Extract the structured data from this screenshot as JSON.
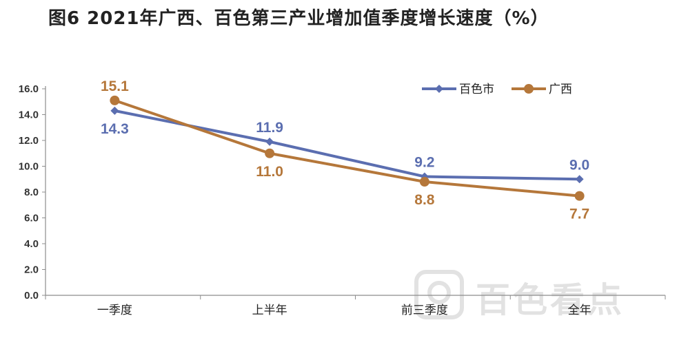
{
  "title": "图6   2021年广西、百色第三产业增加值季度增长速度（%）",
  "watermark": {
    "text": "百色看点",
    "color": "#e2e2e2"
  },
  "chart_data": {
    "type": "line",
    "categories": [
      "一季度",
      "上半年",
      "前三季度",
      "全年"
    ],
    "ylim": [
      0,
      16
    ],
    "yticks": [
      "0.0",
      "2.0",
      "4.0",
      "6.0",
      "8.0",
      "10.0",
      "12.0",
      "14.0",
      "16.0"
    ],
    "grid": false,
    "legend_position": "top-right",
    "series": [
      {
        "name": "百色市",
        "values": [
          14.3,
          11.9,
          9.2,
          9.0
        ],
        "labels": [
          "14.3",
          "11.9",
          "9.2",
          "9.0"
        ],
        "color": "#5b6eb0",
        "marker": "diamond",
        "label_position": [
          "below",
          "above",
          "above",
          "above"
        ]
      },
      {
        "name": "广西",
        "values": [
          15.1,
          11.0,
          8.8,
          7.7
        ],
        "labels": [
          "15.1",
          "11.0",
          "8.8",
          "7.7"
        ],
        "color": "#b5773a",
        "marker": "circle",
        "label_position": [
          "above",
          "below",
          "below",
          "below"
        ]
      }
    ]
  }
}
